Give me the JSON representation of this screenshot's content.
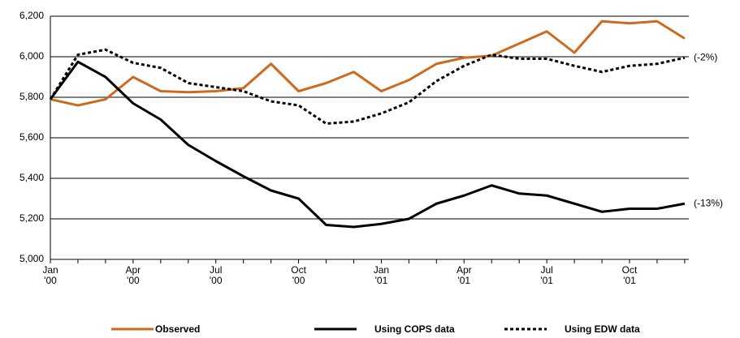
{
  "chart_data": {
    "type": "line",
    "categories": [
      "Jan\n'00",
      null,
      null,
      "Apr\n'00",
      null,
      null,
      "Jul\n'00",
      null,
      null,
      "Oct\n'00",
      null,
      null,
      "Jan\n'01",
      null,
      null,
      "Apr\n'01",
      null,
      null,
      "Jul\n'01",
      null,
      null,
      "Oct\n'01",
      null,
      null
    ],
    "series": [
      {
        "name": "Observed",
        "color": "#cc6a1f",
        "values": [
          5790,
          5760,
          5790,
          5900,
          5830,
          5825,
          5830,
          5845,
          5965,
          5830,
          5870,
          5925,
          5830,
          5885,
          5965,
          5995,
          6005,
          6065,
          6125,
          6020,
          6175,
          6165,
          6175,
          6090
        ]
      },
      {
        "name": "Using COPS data",
        "color": "#000000",
        "end_label": "(-13%)",
        "values": [
          5790,
          5975,
          5900,
          5770,
          5690,
          5565,
          5485,
          5410,
          5340,
          5300,
          5170,
          5160,
          5175,
          5200,
          5275,
          5315,
          5365,
          5325,
          5315,
          5275,
          5235,
          5250,
          5250,
          5275
        ]
      },
      {
        "name": "Using EDW data",
        "color": "#000000",
        "dashed": true,
        "end_label": "(-2%)",
        "values": [
          5790,
          6010,
          6035,
          5970,
          5945,
          5870,
          5850,
          5830,
          5780,
          5760,
          5670,
          5680,
          5720,
          5775,
          5880,
          5955,
          6010,
          5990,
          5990,
          5955,
          5925,
          5955,
          5965,
          5995
        ]
      }
    ],
    "ylim": [
      5000,
      6200
    ],
    "yticks": [
      {
        "value": 5000,
        "label": "5,000"
      },
      {
        "value": 5200,
        "label": "5,200"
      },
      {
        "value": 5400,
        "label": "5,400"
      },
      {
        "value": 5600,
        "label": "5,600"
      },
      {
        "value": 5800,
        "label": "5,800"
      },
      {
        "value": 6000,
        "label": "6,000"
      },
      {
        "value": 6200,
        "label": "6,200"
      }
    ],
    "grid": true,
    "legend": "bottom"
  }
}
